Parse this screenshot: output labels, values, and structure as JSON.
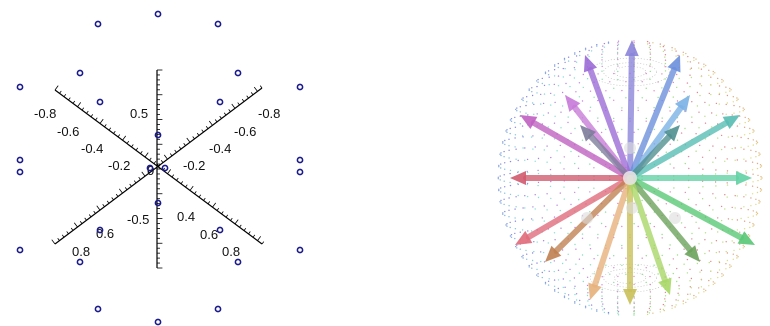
{
  "left_plot": {
    "axes": {
      "vertical_ticks": [
        "0.5",
        "-0.5"
      ],
      "origin_label": "0",
      "diag_down_ticks_left": [
        "-0.8",
        "-0.6",
        "-0.4",
        "-0.2"
      ],
      "diag_down_ticks_right": [
        "0.4",
        "0.6",
        "0.8"
      ],
      "diag_up_ticks_right": [
        "-0.8",
        "-0.6",
        "-0.4",
        "-0.2"
      ],
      "diag_up_ticks_left": [
        "0.6",
        "0.8"
      ]
    },
    "point_color": "#1a1a8c",
    "point_count": 26
  },
  "right_plot": {
    "description": "",
    "arrow_count": 18,
    "sphere_style": "dotted"
  }
}
